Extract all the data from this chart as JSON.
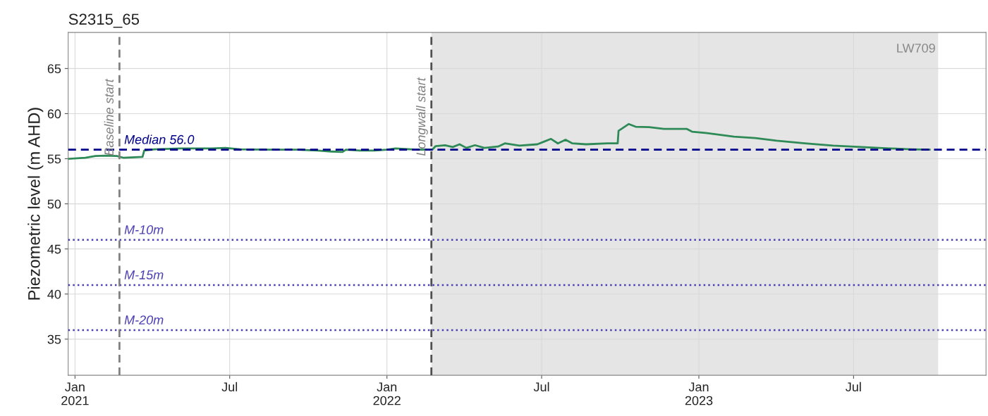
{
  "chart_data": {
    "type": "line",
    "title": "S2315_65",
    "ylabel": "Piezometric level (m AHD)",
    "x": [
      "2020-12-25",
      "2021-01-13",
      "2021-01-25",
      "2021-02-06",
      "2021-02-19",
      "2021-02-27",
      "2021-03-21",
      "2021-03-23",
      "2021-04-04",
      "2021-05-08",
      "2021-06-10",
      "2021-06-26",
      "2021-07-13",
      "2021-08-15",
      "2021-09-17",
      "2021-10-12",
      "2021-10-28",
      "2021-11-10",
      "2021-11-14",
      "2021-12-01",
      "2021-12-17",
      "2022-01-01",
      "2022-01-11",
      "2022-02-05",
      "2022-02-23",
      "2022-02-27",
      "2022-03-10",
      "2022-03-19",
      "2022-03-27",
      "2022-04-04",
      "2022-04-14",
      "2022-04-25",
      "2022-05-11",
      "2022-05-19",
      "2022-06-05",
      "2022-06-26",
      "2022-07-04",
      "2022-07-12",
      "2022-07-20",
      "2022-07-29",
      "2022-08-06",
      "2022-08-22",
      "2022-09-16",
      "2022-09-28",
      "2022-09-29",
      "2022-10-11",
      "2022-10-19",
      "2022-11-04",
      "2022-11-21",
      "2022-12-18",
      "2022-12-24",
      "2023-01-09",
      "2023-02-11",
      "2023-03-08",
      "2023-04-02",
      "2023-05-05",
      "2023-06-07",
      "2023-07-10",
      "2023-08-12",
      "2023-09-06",
      "2023-09-28"
    ],
    "series": [
      {
        "color": "#2e8b57",
        "values": [
          55.0,
          55.1,
          55.3,
          55.35,
          55.3,
          55.1,
          55.2,
          55.9,
          56.05,
          56.15,
          56.15,
          56.2,
          56.05,
          56.0,
          56.0,
          55.9,
          55.8,
          55.75,
          56.0,
          55.9,
          55.9,
          56.0,
          56.15,
          56.0,
          56.0,
          56.4,
          56.5,
          56.3,
          56.6,
          56.2,
          56.5,
          56.2,
          56.35,
          56.7,
          56.45,
          56.6,
          56.9,
          57.2,
          56.7,
          57.1,
          56.7,
          56.6,
          56.7,
          56.7,
          58.1,
          58.85,
          58.55,
          58.5,
          58.3,
          58.3,
          58.0,
          57.85,
          57.45,
          57.3,
          57.0,
          56.7,
          56.45,
          56.3,
          56.15,
          56.05,
          56.0
        ]
      }
    ],
    "xlim": [
      "2020-12-24",
      "2023-12-03"
    ],
    "xticks": [
      {
        "value": "2021-01-01",
        "label": "Jan\n2021"
      },
      {
        "value": "2021-07-01",
        "label": "Jul"
      },
      {
        "value": "2022-01-01",
        "label": "Jan\n2022"
      },
      {
        "value": "2022-07-01",
        "label": "Jul"
      },
      {
        "value": "2023-01-01",
        "label": "Jan\n2023"
      },
      {
        "value": "2023-07-01",
        "label": "Jul"
      }
    ],
    "ylim": [
      31,
      69
    ],
    "yticks": [
      35,
      40,
      45,
      50,
      55,
      60,
      65
    ],
    "ref_lines": [
      {
        "axis": "y",
        "value": 56.0,
        "label": "Median 56.0",
        "color": "#00008b",
        "line_style": "dashed"
      },
      {
        "axis": "y",
        "value": 46,
        "label": "M-10m",
        "color": "#4b3fb5",
        "line_style": "dotted"
      },
      {
        "axis": "y",
        "value": 41,
        "label": "M-15m",
        "color": "#4b3fb5",
        "line_style": "dotted"
      },
      {
        "axis": "y",
        "value": 36,
        "label": "M-20m",
        "color": "#4b3fb5",
        "line_style": "dotted"
      },
      {
        "axis": "x",
        "value": "2021-02-22",
        "label": "Baseline start",
        "color": "#808080",
        "line_style": "dashed"
      },
      {
        "axis": "x",
        "value": "2022-02-22",
        "label": "Longwall start",
        "color": "#505050",
        "line_style": "dashed"
      }
    ],
    "bands": [
      {
        "axis": "x",
        "from": "2022-02-22",
        "to": "2023-10-08",
        "label": "LW709",
        "color": "#e5e5e5"
      }
    ],
    "grid": true,
    "legend": false,
    "line_style": "solid",
    "marker": "none"
  }
}
